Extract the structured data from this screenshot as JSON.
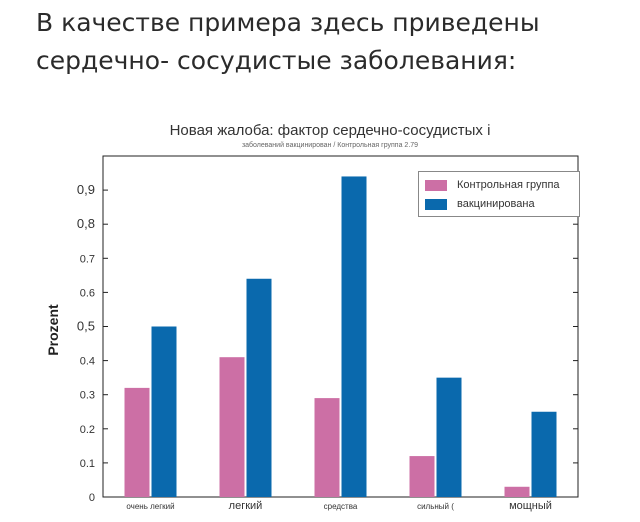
{
  "heading": {
    "line1": "В качестве примера здесь приведены",
    "line2": "сердечно- сосудистые заболевания:"
  },
  "chart_data": {
    "type": "bar",
    "title": "Новая жалоба: фактор сердечно-сосудистых і",
    "subtitle": "заболеваний вакцинирован / Контрольная группа 2.79",
    "ylabel": "Prozent",
    "ylim": [
      0,
      1.0
    ],
    "yticks": [
      "0",
      "0.1",
      "0.2",
      "0.3",
      "0.4",
      "0,5",
      "0.6",
      "0.7",
      "0,8",
      "0,9"
    ],
    "categories": [
      "очень легкий",
      "легкий",
      "средства",
      "сильный (",
      "мощный"
    ],
    "series": [
      {
        "name": "Контрольная группа",
        "color": "#cc6fa5",
        "values": [
          0.32,
          0.41,
          0.29,
          0.12,
          0.03
        ]
      },
      {
        "name": "вакцинирована",
        "color": "#0a69ad",
        "values": [
          0.5,
          0.64,
          0.94,
          0.35,
          0.25
        ]
      }
    ],
    "grid": false,
    "legend_position": "top-right"
  }
}
